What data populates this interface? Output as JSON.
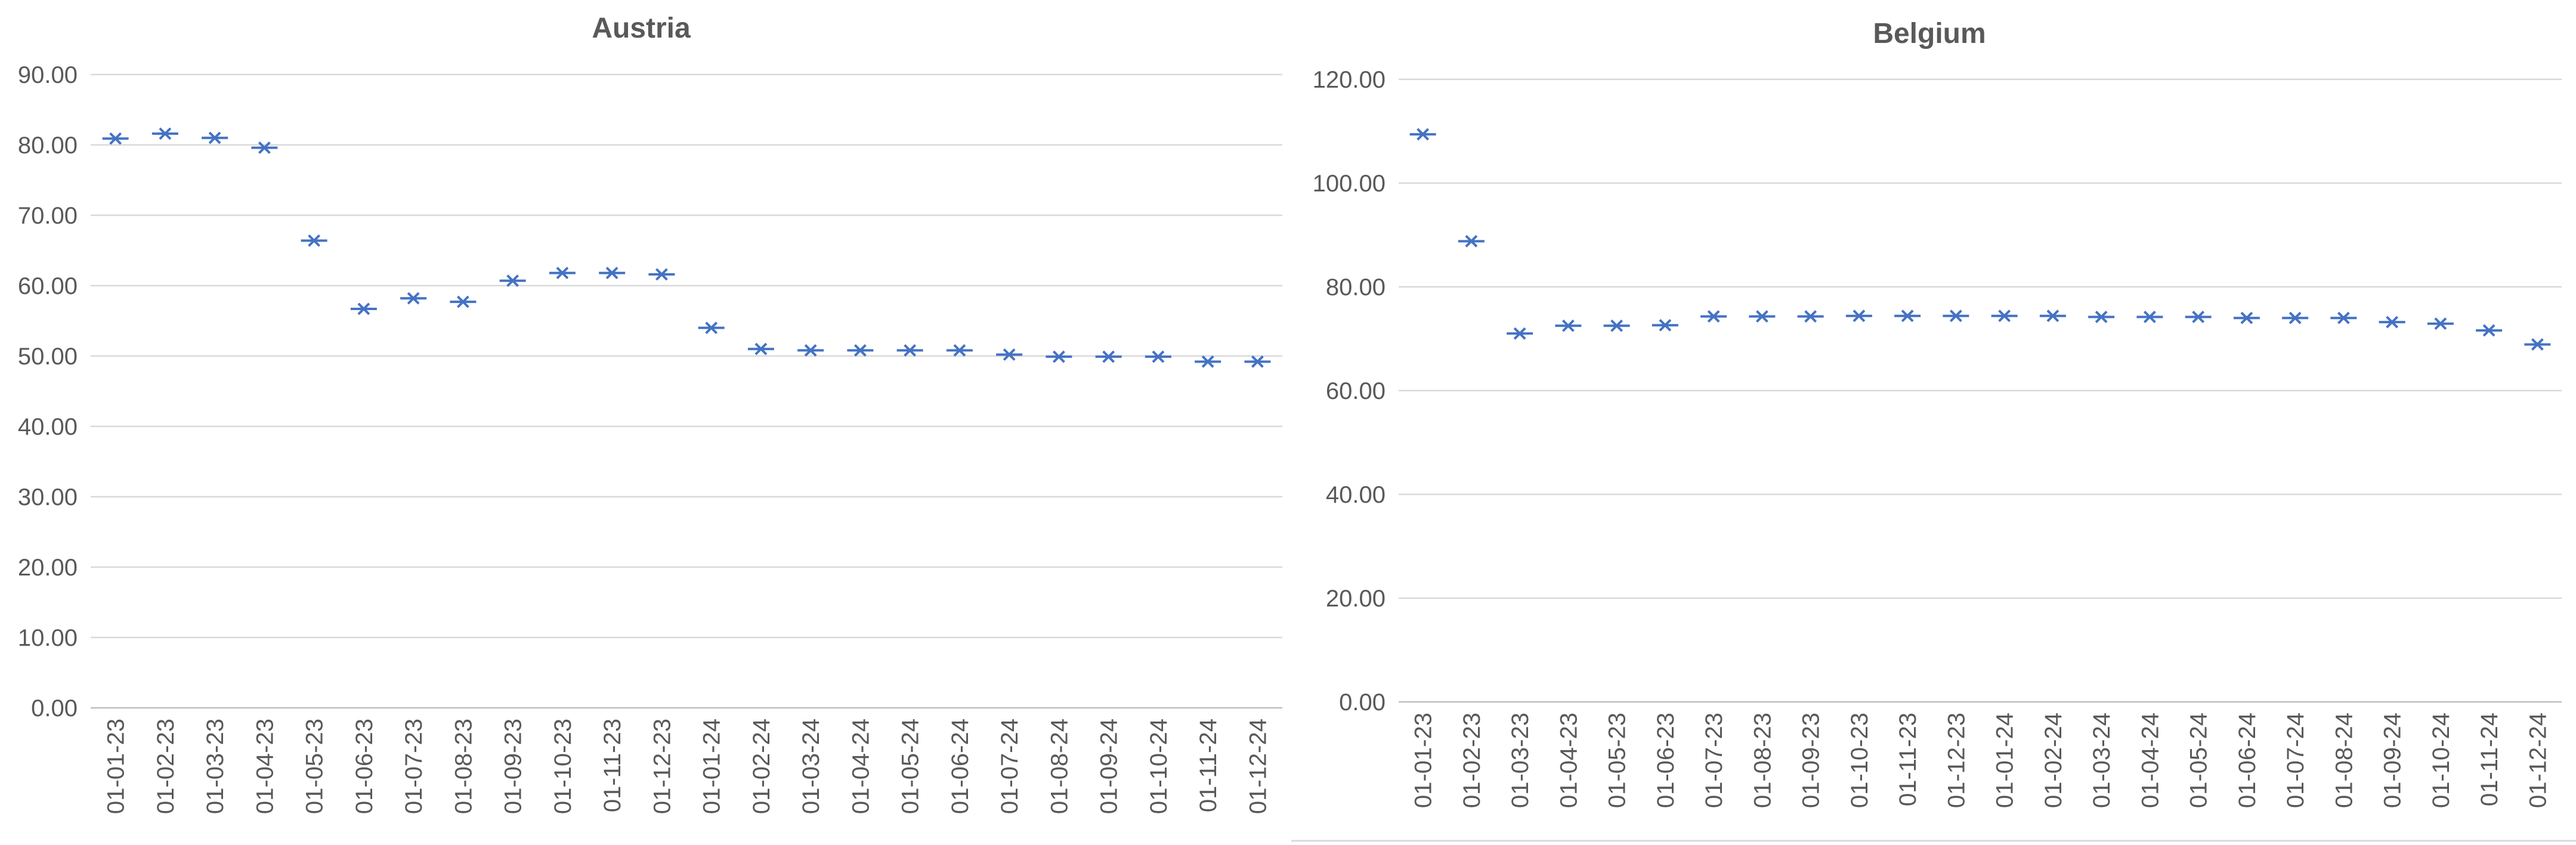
{
  "colors": {
    "marker": "#4472c4",
    "grid": "#d9d9d9",
    "text": "#595959"
  },
  "chart_data": [
    {
      "type": "scatter",
      "title": "Austria",
      "marker": "cross-dash",
      "grid": true,
      "legend": "none",
      "ylim": [
        0,
        90
      ],
      "yticks": [
        "0.00",
        "10.00",
        "20.00",
        "30.00",
        "40.00",
        "50.00",
        "60.00",
        "70.00",
        "80.00",
        "90.00"
      ],
      "categories": [
        "01-01-23",
        "01-02-23",
        "01-03-23",
        "01-04-23",
        "01-05-23",
        "01-06-23",
        "01-07-23",
        "01-08-23",
        "01-09-23",
        "01-10-23",
        "01-11-23",
        "01-12-23",
        "01-01-24",
        "01-02-24",
        "01-03-24",
        "01-04-24",
        "01-05-24",
        "01-06-24",
        "01-07-24",
        "01-08-24",
        "01-09-24",
        "01-10-24",
        "01-11-24",
        "01-12-24"
      ],
      "values": [
        80.9,
        81.6,
        81.0,
        79.6,
        66.4,
        56.7,
        58.2,
        57.7,
        60.7,
        61.8,
        61.8,
        61.6,
        54.0,
        51.0,
        50.8,
        50.8,
        50.8,
        50.8,
        50.2,
        49.9,
        49.9,
        49.9,
        49.2,
        49.2
      ]
    },
    {
      "type": "scatter",
      "title": "Belgium",
      "marker": "cross-dash",
      "grid": true,
      "legend": "none",
      "ylim": [
        0,
        120
      ],
      "yticks": [
        "0.00",
        "20.00",
        "40.00",
        "60.00",
        "80.00",
        "100.00",
        "120.00"
      ],
      "categories": [
        "01-01-23",
        "01-02-23",
        "01-03-23",
        "01-04-23",
        "01-05-23",
        "01-06-23",
        "01-07-23",
        "01-08-23",
        "01-09-23",
        "01-10-23",
        "01-11-23",
        "01-12-23",
        "01-01-24",
        "01-02-24",
        "01-03-24",
        "01-04-24",
        "01-05-24",
        "01-06-24",
        "01-07-24",
        "01-08-24",
        "01-09-24",
        "01-10-24",
        "01-11-24",
        "01-12-24"
      ],
      "values": [
        109.4,
        88.8,
        71.0,
        72.5,
        72.5,
        72.6,
        74.3,
        74.3,
        74.3,
        74.4,
        74.4,
        74.4,
        74.4,
        74.4,
        74.2,
        74.2,
        74.2,
        74.0,
        74.0,
        74.0,
        73.2,
        72.9,
        71.6,
        68.9
      ]
    }
  ]
}
